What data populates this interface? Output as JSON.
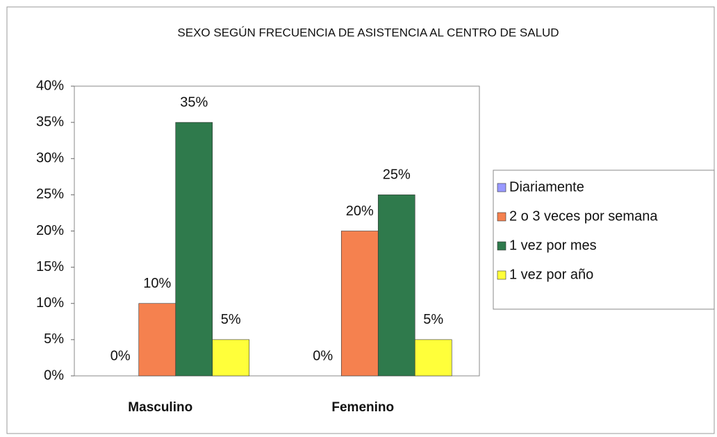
{
  "chart_data": {
    "type": "bar",
    "title": "SEXO SEGÚN FRECUENCIA DE ASISTENCIA AL CENTRO DE SALUD",
    "categories": [
      "Masculino",
      "Femenino"
    ],
    "series": [
      {
        "name": "Diariamente",
        "color": "#9999ff",
        "values": [
          0,
          0
        ],
        "value_labels": [
          "0%",
          "0%"
        ]
      },
      {
        "name": "2 o 3 veces por semana",
        "color": "#f5814f",
        "values": [
          10,
          20
        ],
        "value_labels": [
          "10%",
          "20%"
        ]
      },
      {
        "name": "1 vez por mes",
        "color": "#2f7a4c",
        "values": [
          35,
          25
        ],
        "value_labels": [
          "35%",
          "25%"
        ]
      },
      {
        "name": "1 vez por año",
        "color": "#ffff3a",
        "values": [
          5,
          5
        ],
        "value_labels": [
          "5%",
          "5%"
        ]
      }
    ],
    "ylim": [
      0,
      40
    ],
    "yticks": [
      {
        "value": 0,
        "label": "0%"
      },
      {
        "value": 5,
        "label": "5%"
      },
      {
        "value": 10,
        "label": "10%"
      },
      {
        "value": 15,
        "label": "15%"
      },
      {
        "value": 20,
        "label": "20%"
      },
      {
        "value": 25,
        "label": "25%"
      },
      {
        "value": 30,
        "label": "30%"
      },
      {
        "value": 35,
        "label": "35%"
      },
      {
        "value": 40,
        "label": "40%"
      }
    ],
    "grid": false,
    "legend": "right"
  }
}
